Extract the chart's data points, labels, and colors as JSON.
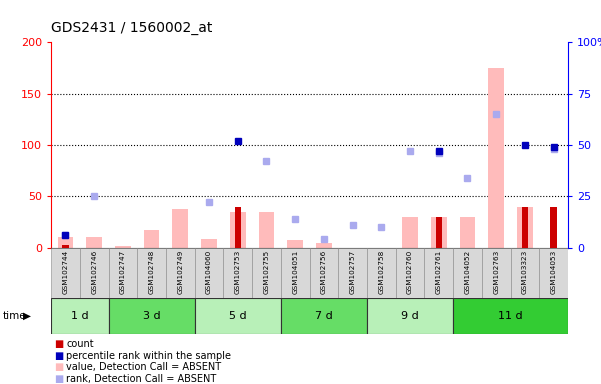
{
  "title": "GDS2431 / 1560002_at",
  "samples": [
    "GSM102744",
    "GSM102746",
    "GSM102747",
    "GSM102748",
    "GSM102749",
    "GSM104060",
    "GSM102753",
    "GSM102755",
    "GSM104051",
    "GSM102756",
    "GSM102757",
    "GSM102758",
    "GSM102760",
    "GSM102761",
    "GSM104052",
    "GSM102763",
    "GSM103323",
    "GSM104053"
  ],
  "time_groups": [
    {
      "label": "1 d",
      "start": 0,
      "end": 2,
      "color": "#b8f0b8"
    },
    {
      "label": "3 d",
      "start": 2,
      "end": 5,
      "color": "#66dd66"
    },
    {
      "label": "5 d",
      "start": 5,
      "end": 8,
      "color": "#b8f0b8"
    },
    {
      "label": "7 d",
      "start": 8,
      "end": 11,
      "color": "#66dd66"
    },
    {
      "label": "9 d",
      "start": 11,
      "end": 14,
      "color": "#b8f0b8"
    },
    {
      "label": "11 d",
      "start": 14,
      "end": 18,
      "color": "#33cc33"
    }
  ],
  "count_values": [
    3,
    0,
    0,
    0,
    0,
    0,
    40,
    0,
    0,
    0,
    0,
    0,
    0,
    30,
    0,
    0,
    40,
    40
  ],
  "pink_bar_values": [
    10,
    10,
    2,
    17,
    38,
    8,
    35,
    35,
    7,
    5,
    0,
    0,
    30,
    30,
    30,
    175,
    40,
    0
  ],
  "blue_sq_values": [
    6,
    0,
    0,
    0,
    0,
    0,
    52,
    0,
    0,
    0,
    0,
    0,
    0,
    47,
    0,
    0,
    50,
    49
  ],
  "lblue_sq_values": [
    6,
    25,
    0,
    0,
    0,
    22,
    0,
    42,
    14,
    4,
    11,
    10,
    47,
    46,
    34,
    65,
    0,
    48
  ],
  "ylim_left": [
    0,
    200
  ],
  "ylim_right": [
    0,
    100
  ],
  "left_yticks": [
    0,
    50,
    100,
    150,
    200
  ],
  "right_yticks": [
    0,
    25,
    50,
    75,
    100
  ],
  "right_yticklabels": [
    "0",
    "25",
    "50",
    "75",
    "100%"
  ],
  "color_count": "#cc0000",
  "color_pink_bar": "#ffbbbb",
  "color_blue_sq": "#0000bb",
  "color_lblue_sq": "#aaaaee"
}
